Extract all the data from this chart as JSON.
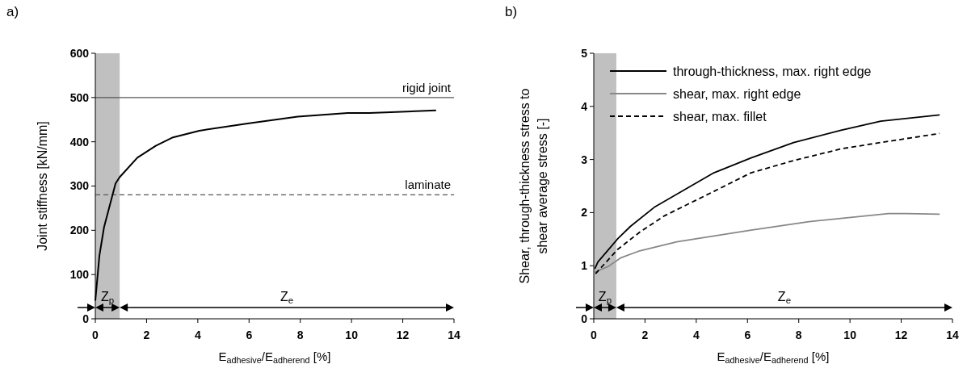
{
  "chart_data": [
    {
      "type": "line",
      "xlabel": "E$_{adhesive}$/E$_{adherend}$ [%]",
      "ylabel": "Joint stiffness [kN/mm]",
      "xlim": [
        0,
        14
      ],
      "ylim": [
        0,
        600
      ],
      "xticks": [
        0,
        2,
        4,
        6,
        8,
        10,
        12,
        14
      ],
      "yticks": [
        0,
        100,
        200,
        300,
        400,
        500,
        600
      ],
      "series": [
        {
          "color": "#000000",
          "x": [
            0,
            0.16,
            0.34,
            0.79,
            0.95,
            1.64,
            2.36,
            3.03,
            4.06,
            6,
            7.9,
            9.85,
            10.7,
            13.3
          ],
          "values": [
            41,
            143,
            207,
            306,
            320,
            364,
            391,
            410,
            425,
            442,
            457,
            465,
            465,
            471
          ]
        }
      ],
      "ref_lines": [
        {
          "axis": "y",
          "value": 500,
          "label": "rigid joint",
          "color": "#555555",
          "line_style": "solid"
        },
        {
          "axis": "y",
          "value": 280,
          "label": "laminate",
          "color": "#555555",
          "line_style": "dashed"
        }
      ],
      "bands": [
        {
          "axis": "x",
          "from": 0,
          "to": 0.95,
          "color": "#c0c0c0"
        }
      ],
      "annotations": [
        "a)",
        "Z$_{p}$",
        "Z$_{e}$"
      ]
    },
    {
      "type": "line",
      "xlabel": "E$_{adhesive}$/E$_{adherend}$ [%]",
      "ylabel": "Shear, through-thickness stress to shear average stress [-]",
      "xlim": [
        0,
        14
      ],
      "ylim": [
        0,
        5
      ],
      "xticks": [
        0,
        2,
        4,
        6,
        8,
        10,
        12,
        14
      ],
      "yticks": [
        0,
        1,
        2,
        3,
        4,
        5
      ],
      "legend": "top",
      "series": [
        {
          "name": "through-thickness, max. right edge",
          "color": "#000000",
          "line_style": "solid",
          "x": [
            0.04,
            0.16,
            0.94,
            1.43,
            2.39,
            4.69,
            6.14,
            7.8,
            9.65,
            11.2,
            13.5
          ],
          "values": [
            0.94,
            1.07,
            1.51,
            1.74,
            2.11,
            2.75,
            3.03,
            3.32,
            3.55,
            3.72,
            3.84
          ]
        },
        {
          "name": "shear, max. right edge",
          "color": "#888888",
          "line_style": "solid",
          "x": [
            0.04,
            0.58,
            1.06,
            1.79,
            3.24,
            6.14,
            8.4,
            11.5,
            12.2,
            13.5
          ],
          "values": [
            0.88,
            0.99,
            1.15,
            1.28,
            1.45,
            1.67,
            1.83,
            1.98,
            1.98,
            1.97
          ]
        },
        {
          "name": "shear, max. fillet",
          "color": "#000000",
          "line_style": "dashed",
          "x": [
            0.07,
            0.94,
            1.79,
            2.76,
            4.69,
            6.14,
            7.8,
            9.65,
            11.2,
            13.5
          ],
          "values": [
            0.85,
            1.31,
            1.63,
            1.94,
            2.4,
            2.75,
            2.98,
            3.2,
            3.32,
            3.49
          ]
        }
      ],
      "bands": [
        {
          "axis": "x",
          "from": 0,
          "to": 0.88,
          "color": "#c0c0c0"
        }
      ],
      "annotations": [
        "b)",
        "Z$_{p}$",
        "Z$_{e}$"
      ]
    }
  ]
}
